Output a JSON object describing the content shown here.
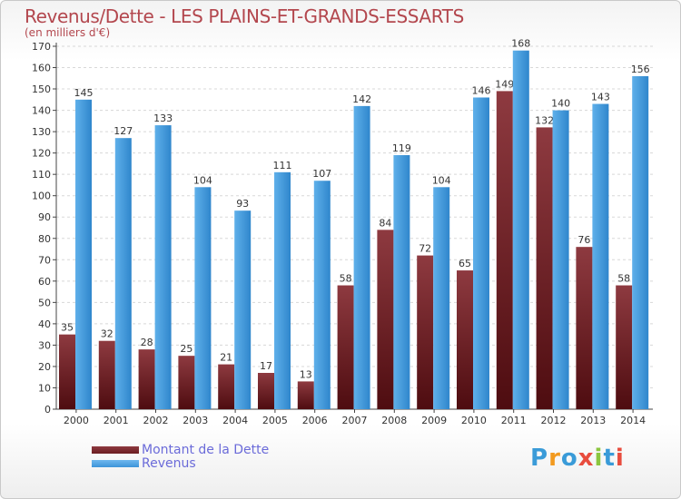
{
  "title": "Revenus/Dette - LES PLAINS-ET-GRANDS-ESSARTS",
  "subtitle": "(en milliers d'€)",
  "logo": {
    "text": "Proxiti",
    "letters": [
      "P",
      "r",
      "o",
      "x",
      "i",
      "t",
      "i"
    ],
    "colors": [
      "#3a9bd8",
      "#f29a1f",
      "#3a9bd8",
      "#e84c3d",
      "#8cc63f",
      "#3a9bd8",
      "#e84c3d"
    ]
  },
  "colors": {
    "dette": "#6b1c21",
    "revenus": "#3d94d9"
  },
  "chart_data": {
    "type": "bar",
    "categories": [
      "2000",
      "2001",
      "2002",
      "2003",
      "2004",
      "2005",
      "2006",
      "2007",
      "2008",
      "2009",
      "2010",
      "2011",
      "2012",
      "2013",
      "2014"
    ],
    "series": [
      {
        "name": "Montant de la Dette",
        "values": [
          35,
          32,
          28,
          25,
          21,
          17,
          13,
          58,
          84,
          72,
          65,
          149,
          132,
          76,
          58
        ]
      },
      {
        "name": "Revenus",
        "values": [
          145,
          127,
          133,
          104,
          93,
          111,
          107,
          142,
          119,
          104,
          146,
          168,
          140,
          143,
          156
        ]
      }
    ],
    "ylim": [
      0,
      170
    ],
    "yticks": [
      0,
      10,
      20,
      30,
      40,
      50,
      60,
      70,
      80,
      90,
      100,
      110,
      120,
      130,
      140,
      150,
      160,
      170
    ],
    "grid": true,
    "legend": "bottom-left"
  }
}
